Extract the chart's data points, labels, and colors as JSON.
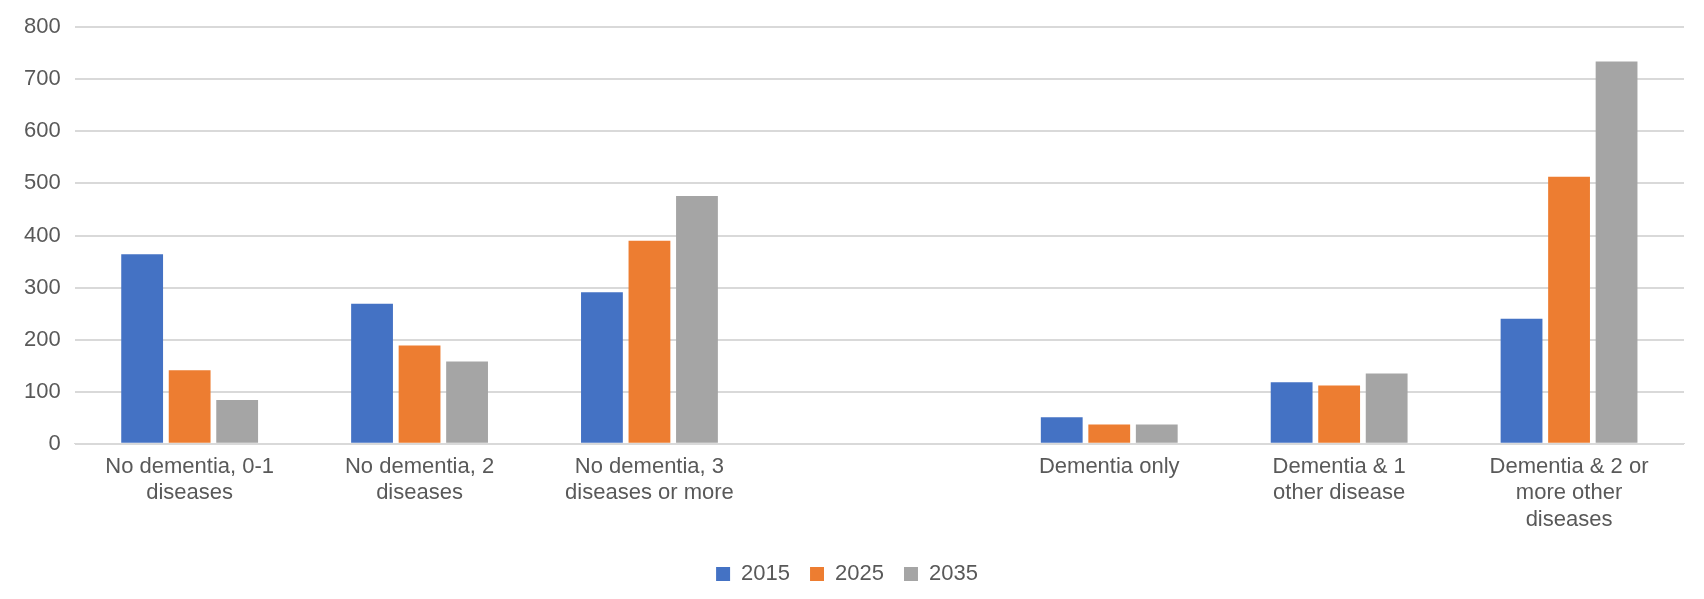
{
  "chart_data": {
    "type": "bar",
    "categories": [
      "No dementia, 0-1 diseases",
      "No dementia, 2 diseases",
      "No dementia, 3 diseases or more",
      null,
      "Dementia only",
      "Dementia & 1 other disease",
      "Dementia & 2 or more other diseases"
    ],
    "series": [
      {
        "name": "2015",
        "color": "#4472c4",
        "values": [
          364,
          269,
          291,
          null,
          51,
          118,
          240
        ]
      },
      {
        "name": "2025",
        "color": "#ed7d31",
        "values": [
          141,
          189,
          390,
          null,
          37,
          112,
          513
        ]
      },
      {
        "name": "2035",
        "color": "#a5a5a5",
        "values": [
          84,
          158,
          476,
          null,
          37,
          135,
          734
        ]
      }
    ],
    "ylim": [
      0,
      800
    ],
    "yticks": [
      0,
      100,
      200,
      300,
      400,
      500,
      600,
      700,
      800
    ],
    "grid": "y",
    "legend": "bottom"
  }
}
